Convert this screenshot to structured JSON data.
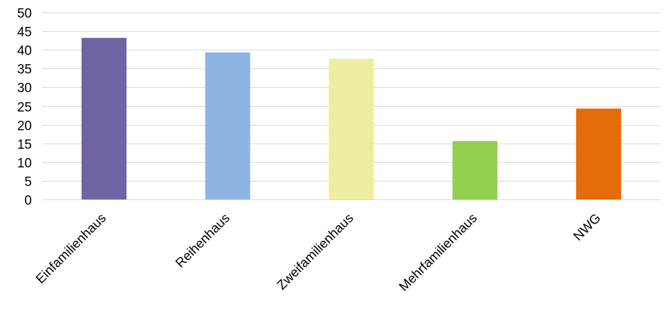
{
  "chart_data": {
    "type": "bar",
    "title": "",
    "xlabel": "",
    "ylabel": "",
    "categories": [
      "Einfamilienhaus",
      "Reihenhaus",
      "Zweifamilienhaus",
      "Mehrfamilienhaus",
      "NWG"
    ],
    "values": [
      43.2,
      39.3,
      37.6,
      15.6,
      24.3
    ],
    "colors": [
      "#7064a4",
      "#8eb4e3",
      "#ecef9f",
      "#92d050",
      "#e46c0a"
    ],
    "ylim": [
      0,
      50
    ],
    "yticks": [
      0,
      5,
      10,
      15,
      20,
      25,
      30,
      35,
      40,
      45,
      50
    ],
    "grid": true,
    "legend": "none"
  }
}
